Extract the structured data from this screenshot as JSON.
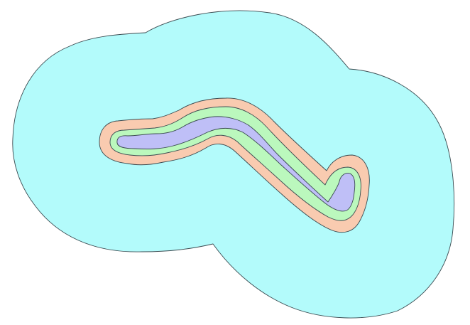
{
  "map": {
    "type": "buffer-zones",
    "zones": [
      {
        "name": "outer-buffer",
        "color": "#b3fbfb"
      },
      {
        "name": "middle-buffer",
        "color": "#f9cbb0"
      },
      {
        "name": "inner-buffer",
        "color": "#bbf8bd"
      },
      {
        "name": "core-feature",
        "color": "#bfbff7"
      }
    ]
  }
}
